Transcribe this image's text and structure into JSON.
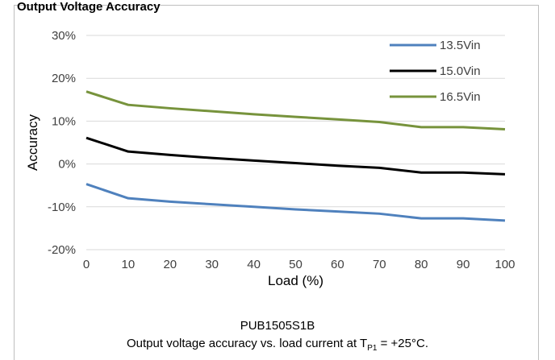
{
  "header": {
    "partial_title": "Output Voltage Accuracy"
  },
  "chart_data": {
    "type": "line",
    "xlabel": "Load (%)",
    "ylabel": "Accuracy",
    "x": [
      0,
      10,
      20,
      30,
      40,
      50,
      60,
      70,
      80,
      90,
      100
    ],
    "xlim": [
      0,
      100
    ],
    "ylim": [
      -20,
      30
    ],
    "yticks": [
      "-20%",
      "-10%",
      "0%",
      "10%",
      "20%",
      "30%"
    ],
    "xticks": [
      "0",
      "10",
      "20",
      "30",
      "40",
      "50",
      "60",
      "70",
      "80",
      "90",
      "100"
    ],
    "grid": true,
    "legend_position": "top-right",
    "series": [
      {
        "name": "13.5Vin",
        "color": "#4f81bd",
        "values": [
          -4.7,
          -8.0,
          -8.8,
          -9.4,
          -10.0,
          -10.6,
          -11.1,
          -11.6,
          -12.7,
          -12.7,
          -13.2
        ]
      },
      {
        "name": "15.0Vin",
        "color": "#000000",
        "values": [
          6.1,
          2.9,
          2.1,
          1.4,
          0.8,
          0.2,
          -0.4,
          -0.9,
          -2.0,
          -2.0,
          -2.4
        ]
      },
      {
        "name": "16.5Vin",
        "color": "#77933c",
        "values": [
          16.9,
          13.8,
          13.0,
          12.3,
          11.6,
          11.0,
          10.4,
          9.8,
          8.6,
          8.6,
          8.1
        ]
      }
    ]
  },
  "caption": {
    "model": "PUB1505S1B",
    "line2_prefix": "Output voltage accuracy vs. load current at T",
    "line2_sub": "P1",
    "line2_suffix": " = +25°C."
  }
}
